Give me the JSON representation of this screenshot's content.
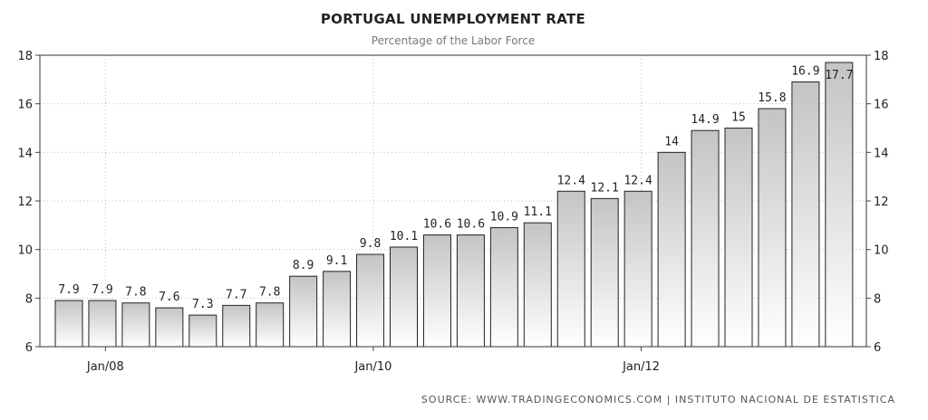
{
  "chart_data": {
    "type": "bar",
    "title": "PORTUGAL UNEMPLOYMENT RATE",
    "subtitle": "Percentage of the Labor Force",
    "source": "SOURCE: WWW.TRADINGECONOMICS.COM | INSTITUTO NACIONAL DE ESTATISTICA",
    "x_tick_labels": [
      "Jan/08",
      "Jan/10",
      "Jan/12"
    ],
    "y_ticks": [
      6,
      8,
      10,
      12,
      14,
      16,
      18
    ],
    "ylim": [
      6,
      18
    ],
    "grid": true,
    "bar_color": "#d8d8d8",
    "values": [
      7.9,
      7.9,
      7.8,
      7.6,
      7.3,
      7.7,
      7.8,
      8.9,
      9.1,
      9.8,
      10.1,
      10.6,
      10.6,
      10.9,
      11.1,
      12.4,
      12.1,
      12.4,
      14,
      14.9,
      15,
      15.8,
      16.9,
      17.7
    ],
    "value_labels": [
      "7.9",
      "7.9",
      "7.8",
      "7.6",
      "7.3",
      "7.7",
      "7.8",
      "8.9",
      "9.1",
      "9.8",
      "10.1",
      "10.6",
      "10.6",
      "10.9",
      "11.1",
      "12.4",
      "12.1",
      "12.4",
      "14",
      "14.9",
      "15",
      "15.8",
      "16.9",
      "17.7"
    ]
  }
}
